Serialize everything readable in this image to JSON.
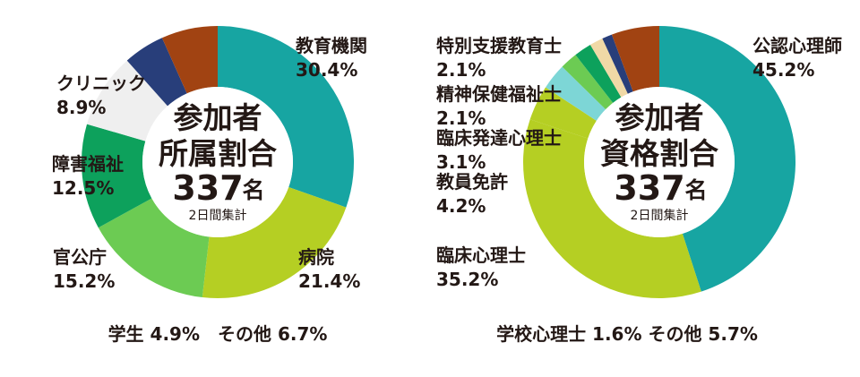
{
  "chart_data": [
    {
      "type": "pie",
      "title_lines": [
        "参加者",
        "所属割合"
      ],
      "total_value": "337",
      "total_unit": "名",
      "note": "2日間集計",
      "slices": [
        {
          "label": "教育機関",
          "value": 30.4,
          "value_label": "30.4%",
          "color": "#17a5a2"
        },
        {
          "label": "病院",
          "value": 21.4,
          "value_label": "21.4%",
          "color": "#b5cf23"
        },
        {
          "label": "官公庁",
          "value": 15.2,
          "value_label": "15.2%",
          "color": "#6ccb53"
        },
        {
          "label": "障害福祉",
          "value": 12.5,
          "value_label": "12.5%",
          "color": "#0da15c"
        },
        {
          "label": "クリニック",
          "value": 8.9,
          "value_label": "8.9%",
          "color": "#efefef"
        },
        {
          "label": "学生",
          "value": 4.9,
          "value_label": "4.9%",
          "color": "#283e7a"
        },
        {
          "label": "その他",
          "value": 6.7,
          "value_label": "6.7%",
          "color": "#a14312"
        }
      ],
      "footer": "学生 4.9%　その他 6.7%"
    },
    {
      "type": "pie",
      "title_lines": [
        "参加者",
        "資格割合"
      ],
      "total_value": "337",
      "total_unit": "名",
      "note": "2日間集計",
      "slices": [
        {
          "label": "公認心理師",
          "value": 45.2,
          "value_label": "45.2%",
          "color": "#17a5a2"
        },
        {
          "label": "臨床心理士",
          "value": 35.2,
          "value_label": "35.2%",
          "color": "#b5cf23"
        },
        {
          "label": "教員免許",
          "value": 4.2,
          "value_label": "4.2%",
          "color": "#b5cf23"
        },
        {
          "label": "臨床発達心理士",
          "value": 3.1,
          "value_label": "3.1%",
          "color": "#7dd6d6"
        },
        {
          "label": "精神保健福祉士",
          "value": 2.1,
          "value_label": "2.1%",
          "color": "#6ccb53"
        },
        {
          "label": "特別支援教育士",
          "value": 2.1,
          "value_label": "2.1%",
          "color": "#0da15c"
        },
        {
          "label": "学校心理士",
          "value": 1.6,
          "value_label": "1.6%",
          "color": "#f0d9a6"
        },
        {
          "label": "",
          "value": 1.2,
          "value_label": "",
          "color": "#283e7a"
        },
        {
          "label": "その他",
          "value": 5.7,
          "value_label": "5.7%",
          "color": "#a14312"
        }
      ],
      "footer": "学校心理士 1.6%  その他 5.7%"
    }
  ]
}
